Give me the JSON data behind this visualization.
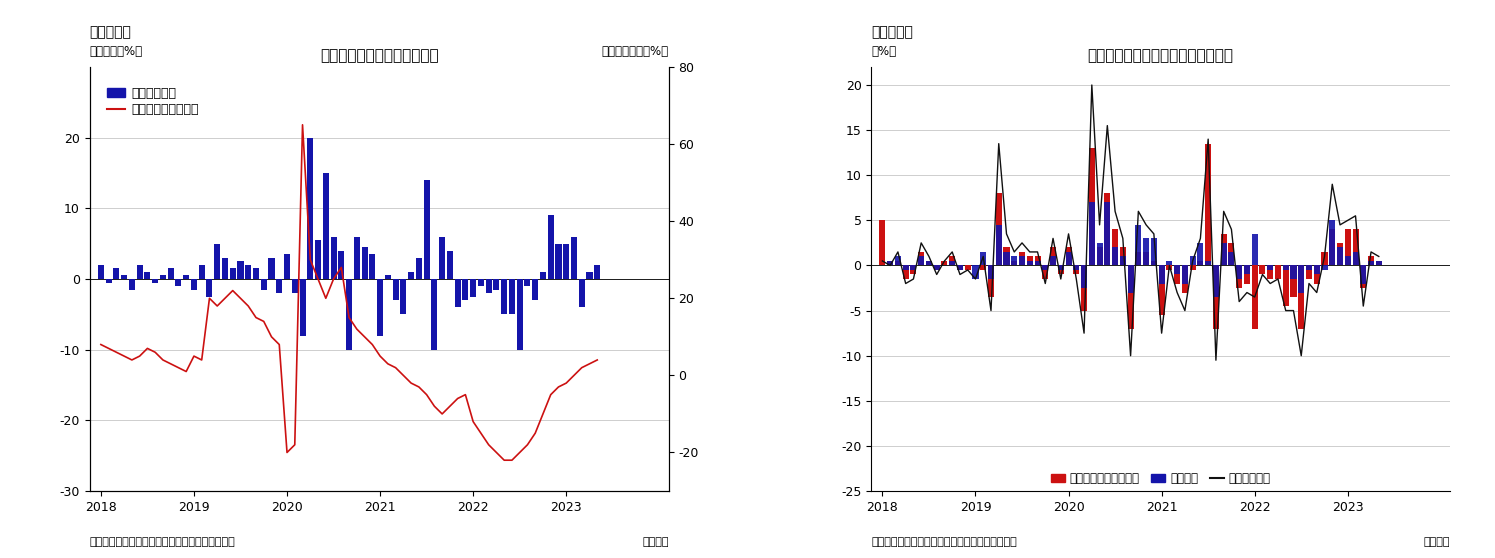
{
  "fig5": {
    "title": "住宅着工許可件数（伸び率）",
    "ylabel_left": "（前月比、%）",
    "ylabel_right": "（前年同月比、%）",
    "legend1": "季調済前月比",
    "legend2": "前年同月比（右軸）",
    "source": "（資料）センサス局よりニッセイ基礎研究所作成",
    "monthly": "（月次）",
    "header": "（図表５）",
    "ylim_left": [
      -30,
      30
    ],
    "ylim_right": [
      -30,
      80
    ],
    "yticks_left": [
      -30,
      -20,
      -10,
      0,
      10,
      20
    ],
    "yticks_right": [
      -20,
      0,
      20,
      40,
      60,
      80
    ],
    "bar_color": "#1414AA",
    "line_color": "#CC1111",
    "bar_data": [
      2.0,
      -0.5,
      1.5,
      0.5,
      -1.5,
      2.0,
      1.0,
      -0.5,
      0.5,
      1.5,
      -1.0,
      0.5,
      -1.5,
      2.0,
      -2.5,
      5.0,
      3.0,
      1.5,
      2.5,
      2.0,
      1.5,
      -1.5,
      3.0,
      -2.0,
      3.5,
      -2.0,
      -8.0,
      20.0,
      5.5,
      15.0,
      6.0,
      4.0,
      -10.0,
      6.0,
      4.5,
      3.5,
      -8.0,
      0.5,
      -3.0,
      -5.0,
      1.0,
      3.0,
      14.0,
      -10.0,
      6.0,
      4.0,
      -4.0,
      -3.0,
      -2.5,
      -1.0,
      -2.0,
      -1.5,
      -5.0,
      -5.0,
      -10.0,
      -1.0,
      -3.0,
      1.0,
      9.0,
      5.0,
      5.0,
      6.0,
      -4.0,
      1.0,
      2.0
    ],
    "line_data": [
      8.0,
      7.0,
      6.0,
      5.0,
      4.0,
      5.0,
      7.0,
      6.0,
      4.0,
      3.0,
      2.0,
      1.0,
      5.0,
      4.0,
      20.0,
      18.0,
      20.0,
      22.0,
      20.0,
      18.0,
      15.0,
      14.0,
      10.0,
      8.0,
      -20.0,
      -18.0,
      65.0,
      30.0,
      25.0,
      20.0,
      25.0,
      28.0,
      15.0,
      12.0,
      10.0,
      8.0,
      5.0,
      3.0,
      2.0,
      0.0,
      -2.0,
      -3.0,
      -5.0,
      -8.0,
      -10.0,
      -8.0,
      -6.0,
      -5.0,
      -12.0,
      -15.0,
      -18.0,
      -20.0,
      -22.0,
      -22.0,
      -20.0,
      -18.0,
      -15.0,
      -10.0,
      -5.0,
      -3.0,
      -2.0,
      0.0,
      2.0,
      3.0,
      4.0
    ]
  },
  "fig6": {
    "title": "住宅着工許可件数前月比（寄与度）",
    "ylabel": "（%）",
    "legend1": "集合住宅（二戸以上）",
    "legend2": "一戸建て",
    "legend3": "住宅許可件数",
    "source": "（資料）センサス局よりニッセイ基礎研究所作成",
    "monthly": "（月次）",
    "header": "（図表６）",
    "ylim": [
      -25,
      22
    ],
    "yticks": [
      -25,
      -20,
      -15,
      -10,
      -5,
      0,
      5,
      10,
      15,
      20
    ],
    "bar_color_red": "#CC1111",
    "bar_color_blue": "#1414AA",
    "line_color": "#111111",
    "red_bars": [
      5.0,
      0.5,
      0.5,
      -1.5,
      -1.0,
      1.5,
      0.5,
      -0.5,
      0.5,
      1.0,
      -0.5,
      -0.5,
      0.0,
      -0.5,
      -3.5,
      8.0,
      2.0,
      0.5,
      1.5,
      1.0,
      1.0,
      -1.5,
      2.0,
      -1.0,
      2.0,
      -1.0,
      -5.0,
      13.0,
      2.0,
      8.0,
      4.0,
      2.0,
      -7.0,
      1.5,
      1.5,
      0.5,
      -5.5,
      -0.5,
      -2.0,
      -3.0,
      -0.5,
      0.5,
      13.5,
      -7.0,
      3.5,
      2.5,
      -2.5,
      -2.0,
      -7.0,
      -1.0,
      -1.5,
      -1.5,
      -4.5,
      -3.5,
      -7.0,
      -1.5,
      -2.0,
      1.5,
      4.0,
      2.5,
      4.0,
      4.0,
      -2.5,
      1.0,
      0.5
    ],
    "blue_bars": [
      0.0,
      0.5,
      1.0,
      -0.5,
      -0.5,
      1.0,
      0.5,
      -0.5,
      0.0,
      0.5,
      -0.5,
      0.0,
      -1.5,
      1.5,
      -1.5,
      4.5,
      1.5,
      1.0,
      1.0,
      0.5,
      0.5,
      -0.5,
      1.0,
      -0.5,
      1.5,
      -0.5,
      -2.5,
      7.0,
      2.5,
      7.0,
      2.0,
      1.0,
      -3.0,
      4.5,
      3.0,
      3.0,
      -2.0,
      0.5,
      -1.0,
      -2.0,
      1.0,
      2.5,
      0.5,
      -3.5,
      2.5,
      1.5,
      -1.5,
      -1.0,
      3.5,
      0.0,
      -0.5,
      0.0,
      -0.5,
      -1.5,
      -3.0,
      -0.5,
      -1.0,
      -0.5,
      5.0,
      2.0,
      1.0,
      1.5,
      -2.0,
      0.5,
      0.5
    ],
    "line_data": [
      0.5,
      0.0,
      1.5,
      -2.0,
      -1.5,
      2.5,
      1.0,
      -1.0,
      0.5,
      1.5,
      -1.0,
      -0.5,
      -1.5,
      1.0,
      -5.0,
      13.5,
      3.5,
      1.5,
      2.5,
      1.5,
      1.5,
      -2.0,
      3.0,
      -1.5,
      3.5,
      -1.5,
      -7.5,
      20.0,
      4.5,
      15.5,
      6.0,
      3.0,
      -10.0,
      6.0,
      4.5,
      3.5,
      -7.5,
      0.0,
      -3.0,
      -5.0,
      0.5,
      3.0,
      14.0,
      -10.5,
      6.0,
      4.0,
      -4.0,
      -3.0,
      -3.5,
      -1.0,
      -2.0,
      -1.5,
      -5.0,
      -5.0,
      -10.0,
      -2.0,
      -3.0,
      1.0,
      9.0,
      4.5,
      5.0,
      5.5,
      -4.5,
      1.5,
      1.0
    ]
  },
  "n_points": 65
}
